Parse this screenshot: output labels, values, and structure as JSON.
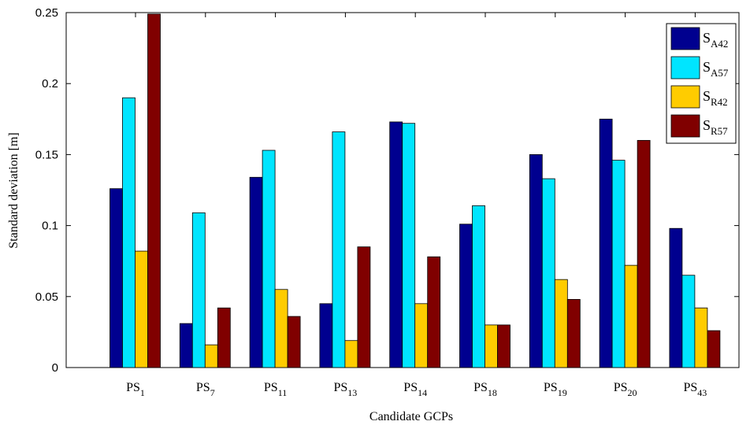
{
  "chart_data": {
    "type": "bar",
    "title": "",
    "xlabel": "Candidate GCPs",
    "ylabel": "Standard deviation [m]",
    "ylim": [
      0,
      0.25
    ],
    "yticks": [
      "0",
      "0.05",
      "0.1",
      "0.15",
      "0.2",
      "0.25"
    ],
    "ytick_values": [
      0,
      0.05,
      0.1,
      0.15,
      0.2,
      0.25
    ],
    "categories": [
      {
        "base": "PS",
        "sub": "1"
      },
      {
        "base": "PS",
        "sub": "7"
      },
      {
        "base": "PS",
        "sub": "11"
      },
      {
        "base": "PS",
        "sub": "13"
      },
      {
        "base": "PS",
        "sub": "14"
      },
      {
        "base": "PS",
        "sub": "18"
      },
      {
        "base": "PS",
        "sub": "19"
      },
      {
        "base": "PS",
        "sub": "20"
      },
      {
        "base": "PS",
        "sub": "43"
      }
    ],
    "series": [
      {
        "name": "S",
        "sub": "A42",
        "color": "#00008f",
        "values": [
          0.126,
          0.031,
          0.134,
          0.045,
          0.173,
          0.101,
          0.15,
          0.175,
          0.098
        ]
      },
      {
        "name": "S",
        "sub": "A57",
        "color": "#00e5ff",
        "values": [
          0.19,
          0.109,
          0.153,
          0.166,
          0.172,
          0.114,
          0.133,
          0.146,
          0.065
        ]
      },
      {
        "name": "S",
        "sub": "R42",
        "color": "#ffcc00",
        "values": [
          0.082,
          0.016,
          0.055,
          0.019,
          0.045,
          0.03,
          0.062,
          0.072,
          0.042
        ]
      },
      {
        "name": "S",
        "sub": "R57",
        "color": "#800000",
        "values": [
          0.249,
          0.042,
          0.036,
          0.085,
          0.078,
          0.03,
          0.048,
          0.16,
          0.026
        ]
      }
    ],
    "grid": false,
    "legend_position": "top-right"
  }
}
